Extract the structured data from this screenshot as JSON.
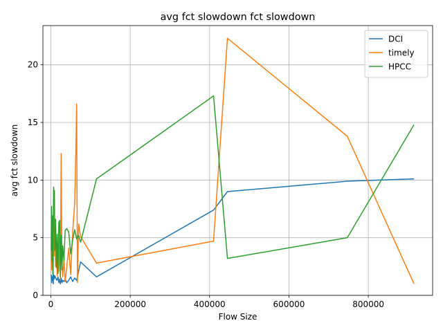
{
  "chart_data": {
    "type": "line",
    "title": "avg fct slowdown fct slowdown",
    "xlabel": "Flow Size",
    "ylabel": "avg fct slowdown",
    "xlim": [
      -20000,
      962000
    ],
    "ylim": [
      0,
      23.4
    ],
    "xticks": [
      0,
      200000,
      400000,
      600000,
      800000
    ],
    "yticks": [
      0,
      5,
      10,
      15,
      20
    ],
    "grid": true,
    "legend_position": "upper right",
    "series": [
      {
        "name": "DCI",
        "color": "#1f77b4",
        "x": [
          1000,
          2000,
          3000,
          4000,
          5000,
          6000,
          7000,
          8000,
          10000,
          12000,
          15000,
          18000,
          20000,
          22000,
          24000,
          26000,
          28000,
          30000,
          33000,
          36000,
          40000,
          45000,
          50000,
          55000,
          60000,
          65000,
          75000,
          115000,
          410000,
          445000,
          747000,
          915000
        ],
        "y": [
          1.8,
          1.1,
          1.6,
          1.3,
          1.7,
          1.0,
          1.8,
          1.4,
          1.7,
          1.5,
          1.3,
          1.6,
          1.1,
          1.4,
          1.0,
          1.5,
          1.1,
          1.3,
          1.2,
          1.4,
          1.1,
          1.3,
          1.6,
          1.2,
          1.5,
          1.3,
          2.9,
          1.6,
          7.4,
          9.0,
          9.9,
          10.1
        ]
      },
      {
        "name": "timely",
        "color": "#ff7f0e",
        "x": [
          1000,
          2000,
          3000,
          4000,
          5000,
          6000,
          7000,
          8000,
          10000,
          12000,
          14000,
          16000,
          18000,
          20000,
          22000,
          24000,
          26000,
          28000,
          30000,
          33000,
          36000,
          40000,
          45000,
          50000,
          55000,
          60000,
          63000,
          65000,
          67000,
          70000,
          75000,
          115000,
          410000,
          445000,
          747000,
          915000
        ],
        "y": [
          3.9,
          2.2,
          5.1,
          2.8,
          6.3,
          1.9,
          7.1,
          3.4,
          5.8,
          2.5,
          4.4,
          1.7,
          3.6,
          2.1,
          5.0,
          1.3,
          12.3,
          2.9,
          1.6,
          3.1,
          1.2,
          2.4,
          4.1,
          1.8,
          5.5,
          8.0,
          12.5,
          16.6,
          1.1,
          6.2,
          5.1,
          2.8,
          4.7,
          22.3,
          13.8,
          1.0
        ]
      },
      {
        "name": "HPCC",
        "color": "#2ca02c",
        "x": [
          1000,
          2000,
          3000,
          4000,
          5000,
          6000,
          7000,
          8000,
          9000,
          10000,
          12000,
          14000,
          16000,
          18000,
          20000,
          22000,
          24000,
          26000,
          28000,
          30000,
          33000,
          36000,
          40000,
          45000,
          50000,
          55000,
          60000,
          65000,
          70000,
          75000,
          115000,
          410000,
          445000,
          747000,
          915000
        ],
        "y": [
          3.9,
          7.7,
          3.0,
          6.9,
          1.8,
          5.4,
          9.4,
          8.1,
          9.1,
          3.9,
          6.6,
          2.4,
          5.3,
          1.9,
          6.3,
          6.5,
          1.6,
          5.2,
          2.2,
          4.3,
          3.0,
          5.6,
          5.8,
          5.5,
          3.6,
          4.8,
          5.7,
          4.9,
          5.2,
          4.6,
          10.1,
          17.3,
          3.2,
          5.0,
          14.8
        ]
      }
    ]
  }
}
